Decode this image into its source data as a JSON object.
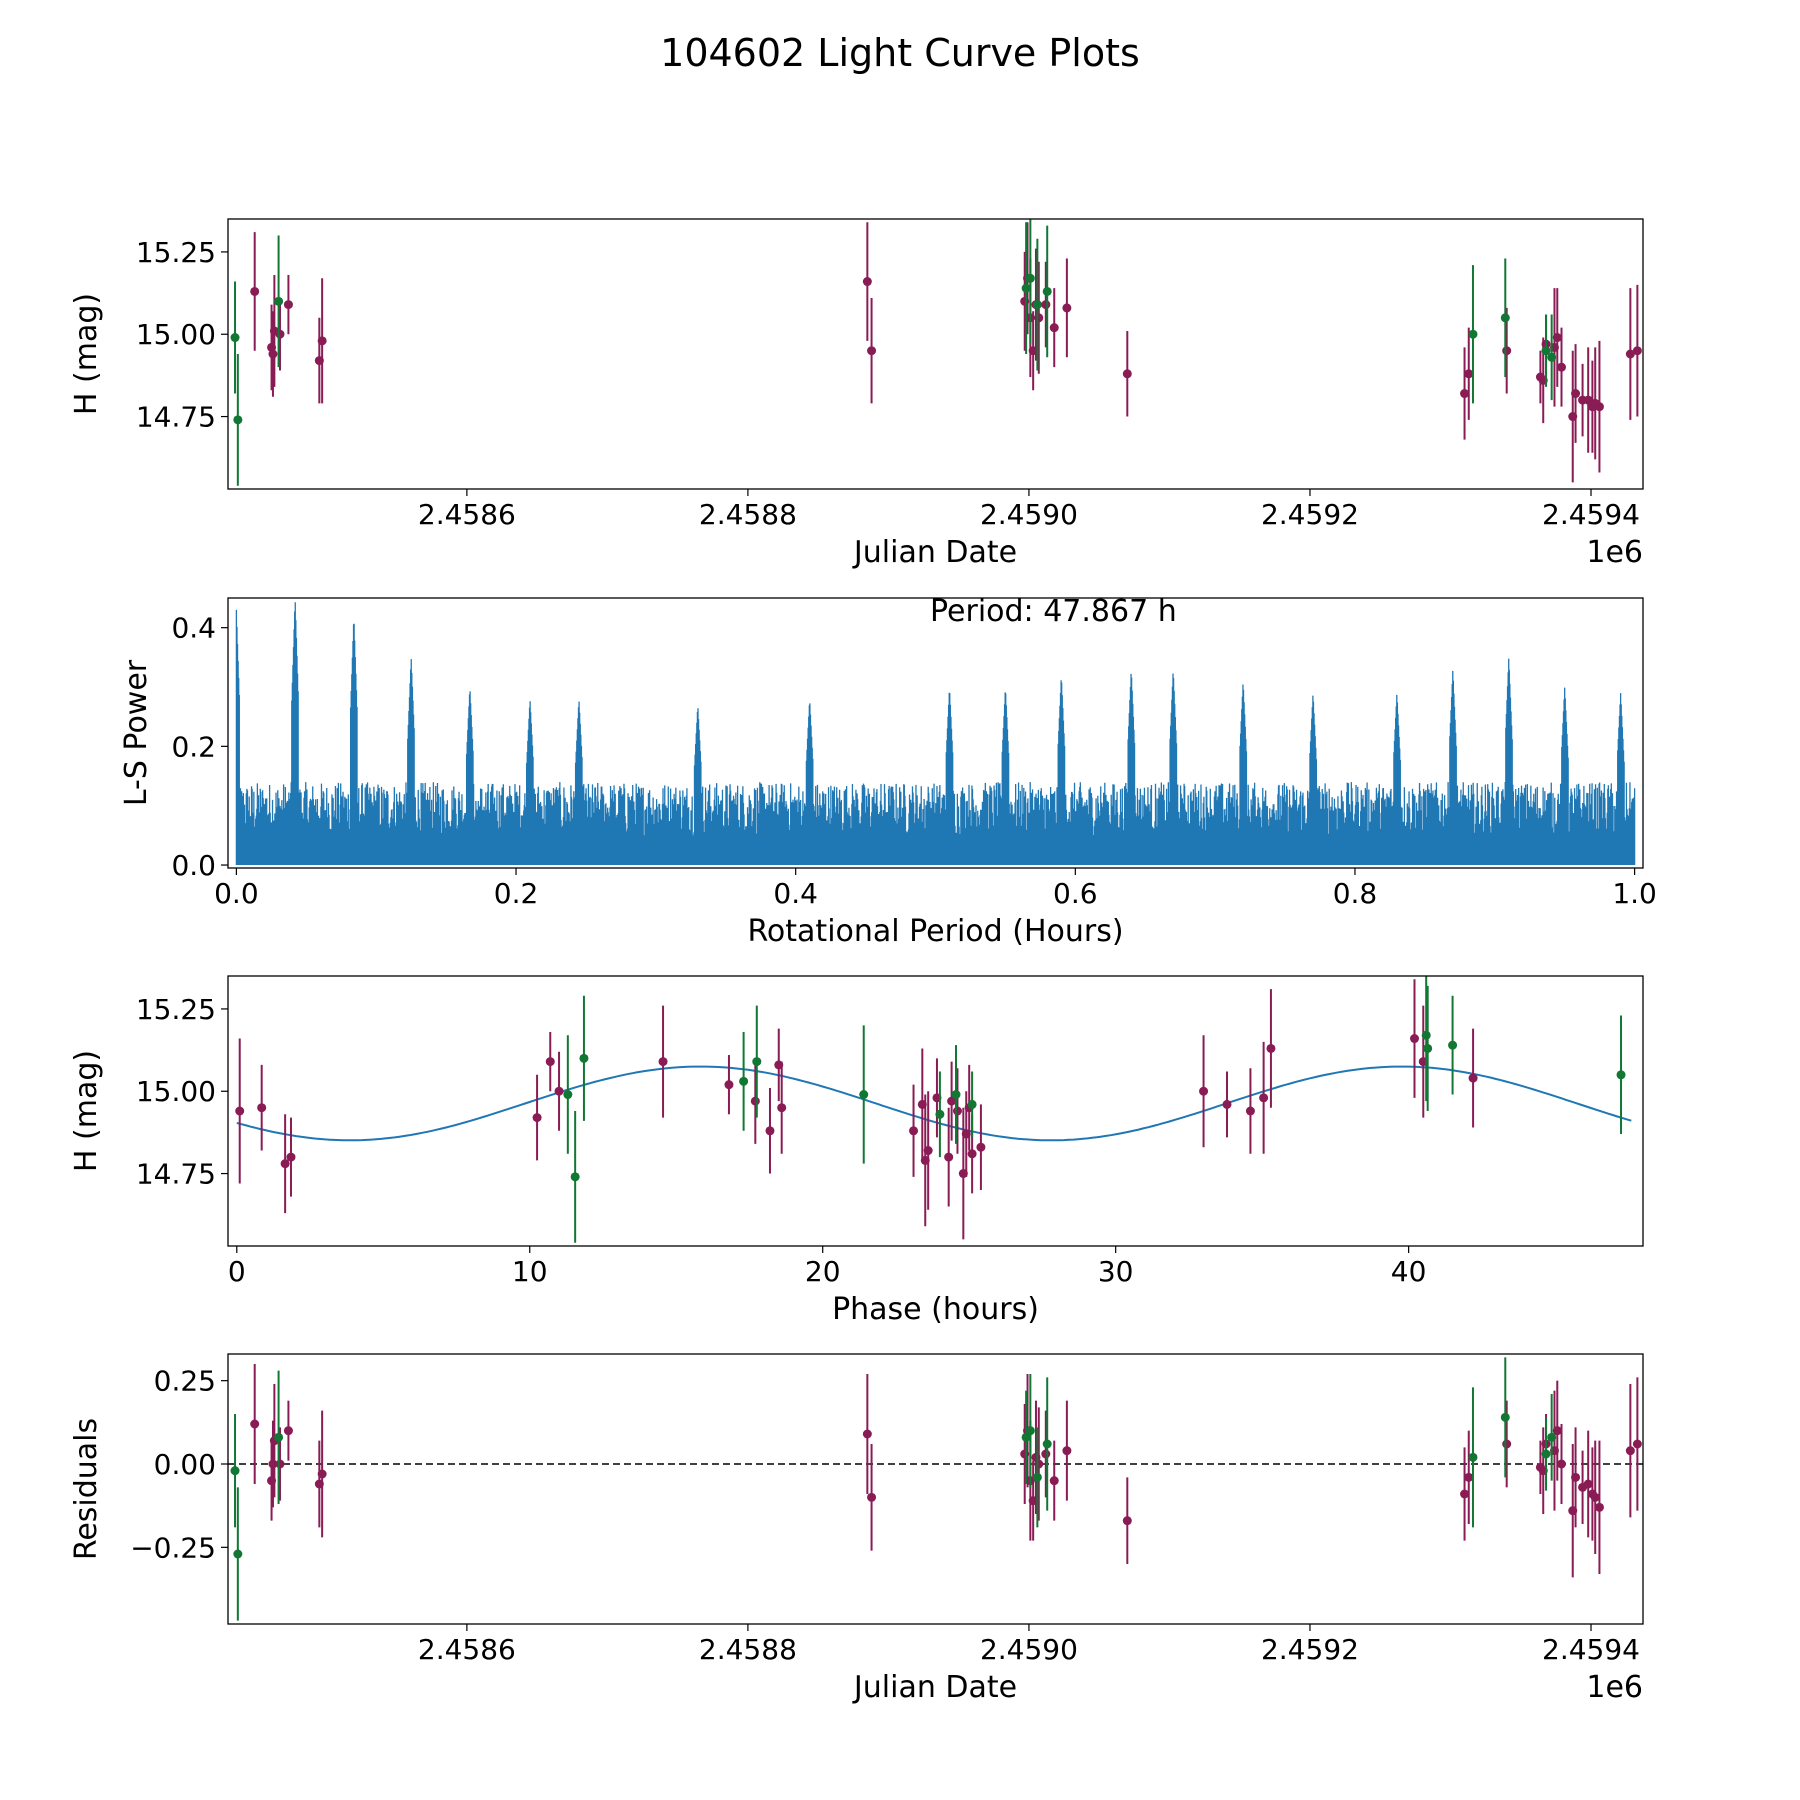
{
  "title": "104602 Light Curve Plots",
  "colors": {
    "purple": "#8a1c55",
    "green": "#117733",
    "blue": "#1f77b4",
    "axis": "#000000"
  },
  "chart_data": [
    {
      "type": "scatter",
      "id": "raw",
      "xlabel": "Julian Date",
      "ylabel": "H (mag)",
      "x_offset_label": "1e6",
      "xlim": [
        2.45843,
        2.459437
      ],
      "ylim": [
        14.53,
        15.35
      ],
      "xticks": [
        2.4586,
        2.4588,
        2.459,
        2.4592,
        2.4594
      ],
      "xtick_labels": [
        "2.4586",
        "2.4588",
        "2.4590",
        "2.4592",
        "2.4594"
      ],
      "yticks": [
        14.75,
        15.0,
        15.25
      ],
      "ytick_labels": [
        "14.75",
        "15.00",
        "15.25"
      ],
      "series": [
        {
          "name": "purple",
          "color": "purple",
          "points": [
            [
              2.458449,
              15.13,
              0.18
            ],
            [
              2.458461,
              14.96,
              0.13
            ],
            [
              2.458462,
              14.94,
              0.13
            ],
            [
              2.458463,
              15.01,
              0.17
            ],
            [
              2.458467,
              15.0,
              0.11
            ],
            [
              2.458473,
              15.09,
              0.09
            ],
            [
              2.458495,
              14.92,
              0.13
            ],
            [
              2.458497,
              14.98,
              0.19
            ],
            [
              2.458885,
              15.16,
              0.18
            ],
            [
              2.458888,
              14.95,
              0.16
            ],
            [
              2.458997,
              15.1,
              0.15
            ],
            [
              2.458999,
              15.17,
              0.17
            ],
            [
              2.459001,
              15.05,
              0.18
            ],
            [
              2.459003,
              14.95,
              0.12
            ],
            [
              2.459005,
              15.09,
              0.17
            ],
            [
              2.459007,
              15.05,
              0.17
            ],
            [
              2.459012,
              15.09,
              0.13
            ],
            [
              2.459018,
              15.02,
              0.12
            ],
            [
              2.459027,
              15.08,
              0.15
            ],
            [
              2.45907,
              14.88,
              0.13
            ],
            [
              2.45931,
              14.82,
              0.14
            ],
            [
              2.459313,
              14.88,
              0.14
            ],
            [
              2.45934,
              14.95,
              0.13
            ],
            [
              2.459364,
              14.87,
              0.08
            ],
            [
              2.459366,
              14.86,
              0.13
            ],
            [
              2.459368,
              14.97,
              0.09
            ],
            [
              2.459374,
              14.96,
              0.18
            ],
            [
              2.459376,
              14.99,
              0.15
            ],
            [
              2.459379,
              14.9,
              0.12
            ],
            [
              2.459387,
              14.75,
              0.2
            ],
            [
              2.459389,
              14.82,
              0.15
            ],
            [
              2.459394,
              14.8,
              0.11
            ],
            [
              2.459398,
              14.8,
              0.16
            ],
            [
              2.459401,
              14.78,
              0.14
            ],
            [
              2.459403,
              14.79,
              0.17
            ],
            [
              2.459406,
              14.78,
              0.2
            ],
            [
              2.459428,
              14.94,
              0.2
            ],
            [
              2.459433,
              14.95,
              0.2
            ]
          ]
        },
        {
          "name": "green",
          "color": "green",
          "points": [
            [
              2.458435,
              14.99,
              0.17
            ],
            [
              2.458437,
              14.74,
              0.2
            ],
            [
              2.458466,
              15.1,
              0.2
            ],
            [
              2.458998,
              15.14,
              0.2
            ],
            [
              2.459001,
              15.17,
              0.2
            ],
            [
              2.459006,
              15.09,
              0.2
            ],
            [
              2.459013,
              15.13,
              0.2
            ],
            [
              2.459316,
              15.0,
              0.21
            ],
            [
              2.459339,
              15.05,
              0.18
            ],
            [
              2.459368,
              14.95,
              0.11
            ],
            [
              2.459372,
              14.93,
              0.13
            ]
          ]
        }
      ]
    },
    {
      "type": "line",
      "id": "periodogram",
      "xlabel": "Rotational Period (Hours)",
      "ylabel": "L-S Power",
      "xlim": [
        -0.006,
        1.006
      ],
      "ylim": [
        -0.005,
        0.45
      ],
      "xticks": [
        0.0,
        0.2,
        0.4,
        0.6,
        0.8,
        1.0
      ],
      "xtick_labels": [
        "0.0",
        "0.2",
        "0.4",
        "0.6",
        "0.8",
        "1.0"
      ],
      "yticks": [
        0.0,
        0.2,
        0.4
      ],
      "ytick_labels": [
        "0.0",
        "0.2",
        "0.4"
      ],
      "annotation": "Period: 47.867 h",
      "series": [
        {
          "name": "L-S power",
          "color": "blue",
          "n_samples": 2400,
          "baseline": 0.14,
          "peaks": [
            [
              0.0,
              0.43
            ],
            [
              0.042,
              0.45
            ],
            [
              0.084,
              0.42
            ],
            [
              0.125,
              0.35
            ],
            [
              0.167,
              0.3
            ],
            [
              0.21,
              0.28
            ],
            [
              0.245,
              0.28
            ],
            [
              0.33,
              0.27
            ],
            [
              0.41,
              0.28
            ],
            [
              0.51,
              0.3
            ],
            [
              0.55,
              0.3
            ],
            [
              0.59,
              0.32
            ],
            [
              0.64,
              0.33
            ],
            [
              0.67,
              0.33
            ],
            [
              0.72,
              0.31
            ],
            [
              0.77,
              0.29
            ],
            [
              0.83,
              0.29
            ],
            [
              0.87,
              0.33
            ],
            [
              0.91,
              0.35
            ],
            [
              0.95,
              0.3
            ],
            [
              0.99,
              0.29
            ]
          ]
        }
      ]
    },
    {
      "type": "scatter",
      "id": "phased",
      "xlabel": "Phase (hours)",
      "ylabel": "H (mag)",
      "xlim": [
        -0.3,
        48.0
      ],
      "ylim": [
        14.53,
        15.35
      ],
      "xticks": [
        0,
        10,
        20,
        30,
        40
      ],
      "xtick_labels": [
        "0",
        "10",
        "20",
        "30",
        "40"
      ],
      "yticks": [
        14.75,
        15.0,
        15.25
      ],
      "ytick_labels": [
        "14.75",
        "15.00",
        "15.25"
      ],
      "fit": {
        "mean": 14.963,
        "amplitude": 0.112,
        "period": 23.9335,
        "peak_phase": 15.83,
        "color": "blue"
      },
      "series": [
        {
          "name": "purple",
          "color": "purple",
          "points": [
            [
              0.1,
              14.94,
              0.22
            ],
            [
              0.85,
              14.95,
              0.13
            ],
            [
              1.65,
              14.78,
              0.15
            ],
            [
              1.85,
              14.8,
              0.12
            ],
            [
              10.25,
              14.92,
              0.13
            ],
            [
              10.7,
              15.09,
              0.09
            ],
            [
              11.0,
              15.0,
              0.12
            ],
            [
              14.55,
              15.09,
              0.17
            ],
            [
              16.8,
              15.02,
              0.09
            ],
            [
              17.7,
              14.97,
              0.13
            ],
            [
              18.2,
              14.88,
              0.13
            ],
            [
              18.5,
              15.08,
              0.11
            ],
            [
              18.6,
              14.95,
              0.14
            ],
            [
              23.1,
              14.88,
              0.14
            ],
            [
              23.4,
              14.96,
              0.17
            ],
            [
              23.5,
              14.79,
              0.2
            ],
            [
              23.6,
              14.82,
              0.18
            ],
            [
              23.9,
              14.98,
              0.12
            ],
            [
              24.3,
              14.8,
              0.15
            ],
            [
              24.4,
              14.97,
              0.12
            ],
            [
              24.6,
              14.94,
              0.13
            ],
            [
              24.8,
              14.75,
              0.2
            ],
            [
              24.9,
              14.87,
              0.13
            ],
            [
              25.0,
              14.95,
              0.13
            ],
            [
              25.1,
              14.81,
              0.12
            ],
            [
              25.4,
              14.83,
              0.13
            ],
            [
              33.0,
              15.0,
              0.17
            ],
            [
              33.8,
              14.96,
              0.1
            ],
            [
              34.6,
              14.94,
              0.13
            ],
            [
              35.05,
              14.98,
              0.17
            ],
            [
              35.3,
              15.13,
              0.18
            ],
            [
              40.2,
              15.16,
              0.18
            ],
            [
              40.5,
              15.09,
              0.17
            ],
            [
              42.2,
              15.04,
              0.15
            ]
          ]
        },
        {
          "name": "green",
          "color": "green",
          "points": [
            [
              11.3,
              14.99,
              0.18
            ],
            [
              11.55,
              14.74,
              0.2
            ],
            [
              11.85,
              15.1,
              0.19
            ],
            [
              17.3,
              15.03,
              0.15
            ],
            [
              17.75,
              15.09,
              0.17
            ],
            [
              21.4,
              14.99,
              0.21
            ],
            [
              24.0,
              14.93,
              0.13
            ],
            [
              24.55,
              14.99,
              0.15
            ],
            [
              25.1,
              14.96,
              0.1
            ],
            [
              40.6,
              15.17,
              0.2
            ],
            [
              40.65,
              15.13,
              0.19
            ],
            [
              41.5,
              15.14,
              0.15
            ],
            [
              47.25,
              15.05,
              0.18
            ]
          ]
        }
      ]
    },
    {
      "type": "scatter",
      "id": "residuals",
      "xlabel": "Julian Date",
      "ylabel": "Residuals",
      "x_offset_label": "1e6",
      "xlim": [
        2.45843,
        2.459437
      ],
      "ylim": [
        -0.48,
        0.33
      ],
      "xticks": [
        2.4586,
        2.4588,
        2.459,
        2.4592,
        2.4594
      ],
      "xtick_labels": [
        "2.4586",
        "2.4588",
        "2.4590",
        "2.4592",
        "2.4594"
      ],
      "yticks": [
        -0.25,
        0.0,
        0.25
      ],
      "ytick_labels": [
        "−0.25",
        "0.00",
        "0.25"
      ],
      "zero_line": true,
      "series": [
        {
          "name": "purple",
          "color": "purple",
          "points": [
            [
              2.458449,
              0.12,
              0.18
            ],
            [
              2.458461,
              -0.05,
              0.12
            ],
            [
              2.458462,
              0.0,
              0.13
            ],
            [
              2.458463,
              0.07,
              0.17
            ],
            [
              2.458467,
              0.0,
              0.11
            ],
            [
              2.458473,
              0.1,
              0.09
            ],
            [
              2.458495,
              -0.06,
              0.13
            ],
            [
              2.458497,
              -0.03,
              0.19
            ],
            [
              2.458885,
              0.09,
              0.18
            ],
            [
              2.458888,
              -0.1,
              0.16
            ],
            [
              2.458997,
              0.03,
              0.15
            ],
            [
              2.458999,
              0.1,
              0.17
            ],
            [
              2.459001,
              -0.05,
              0.18
            ],
            [
              2.459003,
              -0.11,
              0.12
            ],
            [
              2.459005,
              0.02,
              0.17
            ],
            [
              2.459007,
              0.0,
              0.17
            ],
            [
              2.459012,
              0.03,
              0.13
            ],
            [
              2.459018,
              -0.05,
              0.12
            ],
            [
              2.459027,
              0.04,
              0.15
            ],
            [
              2.45907,
              -0.17,
              0.13
            ],
            [
              2.45931,
              -0.09,
              0.14
            ],
            [
              2.459313,
              -0.04,
              0.14
            ],
            [
              2.45934,
              0.06,
              0.13
            ],
            [
              2.459364,
              -0.01,
              0.08
            ],
            [
              2.459366,
              -0.02,
              0.13
            ],
            [
              2.459368,
              0.06,
              0.09
            ],
            [
              2.459374,
              0.04,
              0.18
            ],
            [
              2.459376,
              0.1,
              0.15
            ],
            [
              2.459379,
              0.0,
              0.12
            ],
            [
              2.459387,
              -0.14,
              0.2
            ],
            [
              2.459389,
              -0.04,
              0.15
            ],
            [
              2.459394,
              -0.07,
              0.11
            ],
            [
              2.459398,
              -0.06,
              0.16
            ],
            [
              2.459401,
              -0.09,
              0.14
            ],
            [
              2.459403,
              -0.1,
              0.17
            ],
            [
              2.459406,
              -0.13,
              0.2
            ],
            [
              2.459428,
              0.04,
              0.2
            ],
            [
              2.459433,
              0.06,
              0.2
            ]
          ]
        },
        {
          "name": "green",
          "color": "green",
          "points": [
            [
              2.458435,
              -0.02,
              0.17
            ],
            [
              2.458437,
              -0.27,
              0.2
            ],
            [
              2.458466,
              0.08,
              0.2
            ],
            [
              2.458998,
              0.08,
              0.14
            ],
            [
              2.459001,
              0.1,
              0.17
            ],
            [
              2.459006,
              -0.04,
              0.15
            ],
            [
              2.459013,
              0.06,
              0.2
            ],
            [
              2.459316,
              0.02,
              0.21
            ],
            [
              2.459339,
              0.14,
              0.18
            ],
            [
              2.459368,
              0.03,
              0.11
            ],
            [
              2.459372,
              0.08,
              0.13
            ]
          ]
        }
      ]
    }
  ]
}
